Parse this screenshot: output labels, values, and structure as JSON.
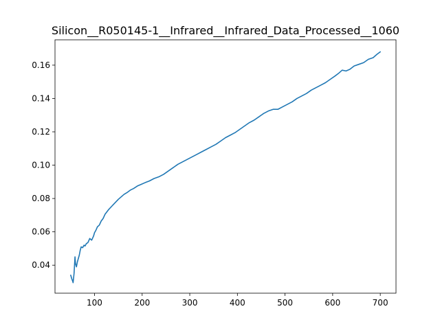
{
  "chart_data": {
    "type": "line",
    "title": "Silicon__R050145-1__Infrared__Infrared_Data_Processed__1060",
    "xlabel": "",
    "ylabel": "",
    "xlim": [
      17,
      733
    ],
    "ylim": [
      0.0232,
      0.1752
    ],
    "x_ticks": [
      100,
      200,
      300,
      400,
      500,
      600,
      700
    ],
    "y_ticks": [
      0.04,
      0.06,
      0.08,
      0.1,
      0.12,
      0.14,
      0.16
    ],
    "x_tick_labels": [
      "100",
      "200",
      "300",
      "400",
      "500",
      "600",
      "700"
    ],
    "y_tick_labels": [
      "0.04",
      "0.06",
      "0.08",
      "0.10",
      "0.12",
      "0.14",
      "0.16"
    ],
    "grid": false,
    "legend": "none",
    "series": [
      {
        "color": "#1f77b4",
        "x": [
          50,
          52,
          54,
          55,
          57,
          59,
          60,
          62,
          64,
          66,
          68,
          70,
          72,
          75,
          78,
          80,
          83,
          86,
          90,
          94,
          98,
          100,
          103,
          106,
          110,
          114,
          118,
          122,
          126,
          130,
          135,
          140,
          145,
          150,
          156,
          162,
          168,
          175,
          182,
          190,
          198,
          206,
          215,
          225,
          235,
          245,
          255,
          265,
          275,
          285,
          295,
          305,
          315,
          325,
          335,
          345,
          355,
          365,
          375,
          385,
          395,
          405,
          415,
          425,
          435,
          445,
          455,
          465,
          475,
          485,
          495,
          505,
          515,
          525,
          535,
          545,
          555,
          565,
          575,
          585,
          595,
          605,
          612,
          620,
          628,
          636,
          645,
          655,
          665,
          675,
          685,
          693,
          700
        ],
        "y": [
          0.034,
          0.032,
          0.0305,
          0.0295,
          0.035,
          0.045,
          0.041,
          0.039,
          0.042,
          0.044,
          0.046,
          0.049,
          0.051,
          0.0505,
          0.052,
          0.0515,
          0.053,
          0.0535,
          0.056,
          0.055,
          0.0575,
          0.0595,
          0.061,
          0.063,
          0.064,
          0.0665,
          0.068,
          0.0705,
          0.072,
          0.0735,
          0.075,
          0.0765,
          0.078,
          0.0795,
          0.081,
          0.0825,
          0.0835,
          0.085,
          0.086,
          0.0875,
          0.0885,
          0.0895,
          0.0905,
          0.092,
          0.093,
          0.0945,
          0.0965,
          0.0985,
          0.1005,
          0.102,
          0.1035,
          0.105,
          0.1065,
          0.108,
          0.1095,
          0.111,
          0.1125,
          0.1145,
          0.1165,
          0.118,
          0.1195,
          0.1215,
          0.1235,
          0.1255,
          0.127,
          0.129,
          0.131,
          0.1325,
          0.1335,
          0.1335,
          0.135,
          0.1365,
          0.138,
          0.14,
          0.1415,
          0.143,
          0.145,
          0.1465,
          0.148,
          0.1495,
          0.1515,
          0.1535,
          0.155,
          0.157,
          0.1565,
          0.1575,
          0.1595,
          0.1605,
          0.1615,
          0.1635,
          0.1645,
          0.1665,
          0.168
        ]
      }
    ]
  }
}
